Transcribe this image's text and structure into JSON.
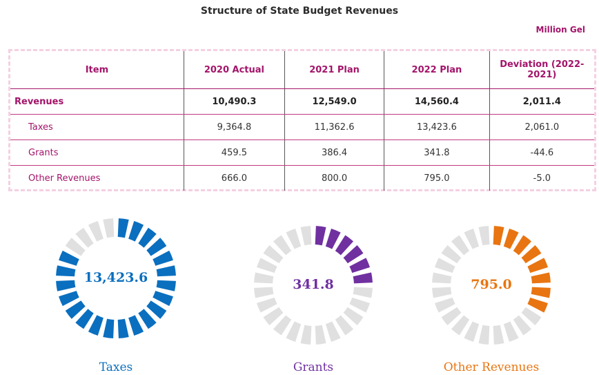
{
  "title": "Structure of State Budget Revenues",
  "unit": "Million Gel",
  "table": {
    "header": [
      "Item",
      "2020 Actual",
      "2021 Plan",
      "2022 Plan",
      "Deviation (2022-2021)"
    ],
    "rows": [
      [
        "Revenues",
        "10,490.3",
        "12,549.0",
        "14,560.4",
        "2,011.4"
      ],
      [
        "Taxes",
        "9,364.8",
        "11,362.6",
        "13,423.6",
        "2,061.0"
      ],
      [
        "Grants",
        "459.5",
        "386.4",
        "341.8",
        "-44.6"
      ],
      [
        "Other Revenues",
        "666.0",
        "800.0",
        "795.0",
        "-5.0"
      ]
    ]
  },
  "donuts": [
    {
      "label": "Taxes",
      "value_label": "13,423.6",
      "color": "#0a6fbf",
      "segments": 24,
      "filled": 20
    },
    {
      "label": "Grants",
      "value_label": "341.8",
      "color": "#7030a0",
      "segments": 24,
      "filled": 6
    },
    {
      "label": "Other Revenues",
      "value_label": "795.0",
      "color": "#e87511",
      "segments": 24,
      "filled": 8
    }
  ]
}
